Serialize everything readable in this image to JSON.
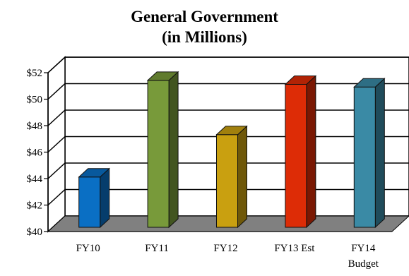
{
  "chart_data": {
    "type": "bar",
    "title": "General Government",
    "subtitle": "(in Millions)",
    "categories": [
      "FY10",
      "FY11",
      "FY12",
      "FY13 Est",
      "FY14 Budget"
    ],
    "category_lines": [
      [
        "FY10"
      ],
      [
        "FY11"
      ],
      [
        "FY12"
      ],
      [
        "FY13 Est"
      ],
      [
        "FY14",
        "Budget"
      ]
    ],
    "values": [
      43.8,
      51.1,
      47.0,
      50.8,
      50.6
    ],
    "ylim": [
      40,
      52
    ],
    "yticks": [
      40,
      42,
      44,
      46,
      48,
      50,
      52
    ],
    "ytick_labels": [
      "$40",
      "$42",
      "$44",
      "$46",
      "$48",
      "$50",
      "$52"
    ],
    "xlabel": "",
    "ylabel": "",
    "grid": true,
    "three_d": true,
    "colors": [
      "#0a6fc4",
      "#789a3a",
      "#c9a010",
      "#dd2c06",
      "#3a8aa5"
    ]
  }
}
